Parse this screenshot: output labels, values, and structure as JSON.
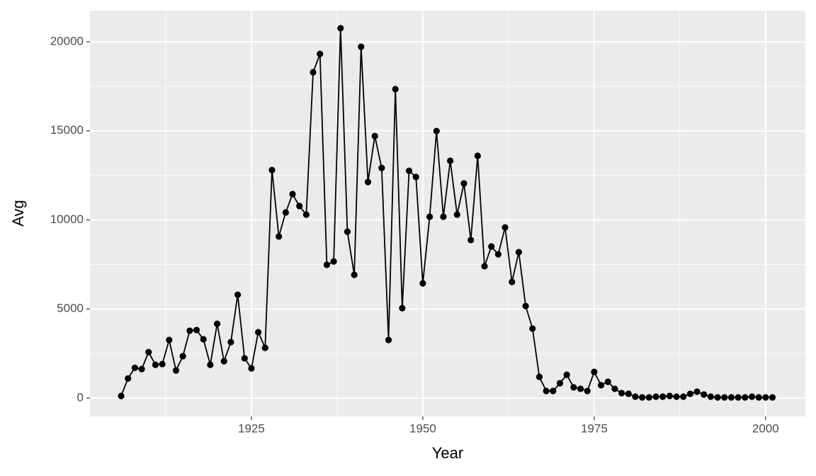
{
  "chart_data": {
    "type": "line",
    "x_label": "Year",
    "y_label": "Avg",
    "x": [
      1906,
      1907,
      1908,
      1909,
      1910,
      1911,
      1912,
      1913,
      1914,
      1915,
      1916,
      1917,
      1918,
      1919,
      1920,
      1921,
      1922,
      1923,
      1924,
      1925,
      1926,
      1927,
      1928,
      1929,
      1930,
      1931,
      1932,
      1933,
      1934,
      1935,
      1936,
      1937,
      1938,
      1939,
      1940,
      1941,
      1942,
      1943,
      1944,
      1945,
      1946,
      1947,
      1948,
      1949,
      1950,
      1951,
      1952,
      1953,
      1954,
      1955,
      1956,
      1957,
      1958,
      1959,
      1960,
      1961,
      1962,
      1963,
      1964,
      1965,
      1966,
      1967,
      1968,
      1969,
      1970,
      1971,
      1972,
      1973,
      1974,
      1975,
      1976,
      1977,
      1978,
      1979,
      1980,
      1981,
      1982,
      1983,
      1984,
      1985,
      1986,
      1987,
      1988,
      1989,
      1990,
      1991,
      1992,
      1993,
      1994,
      1995,
      1996,
      1997,
      1998,
      1999,
      2000,
      2001
    ],
    "series": [
      {
        "color": "#000000",
        "values": [
          120,
          1100,
          1700,
          1630,
          2580,
          1870,
          1910,
          3260,
          1550,
          2350,
          3780,
          3820,
          3300,
          1870,
          4170,
          2070,
          3140,
          5800,
          2230,
          1670,
          3700,
          2820,
          12800,
          9070,
          10420,
          11450,
          10780,
          10300,
          18290,
          19320,
          7480,
          7670,
          20760,
          9340,
          6920,
          19720,
          12130,
          14710,
          12920,
          3260,
          17340,
          5050,
          12760,
          12410,
          6440,
          10180,
          14990,
          10180,
          13320,
          10300,
          12050,
          8870,
          13600,
          7400,
          8510,
          8070,
          9580,
          6520,
          8190,
          5170,
          3900,
          1190,
          400,
          400,
          835,
          1310,
          600,
          520,
          400,
          1470,
          720,
          915,
          520,
          280,
          240,
          80,
          40,
          40,
          80,
          80,
          120,
          80,
          80,
          240,
          360,
          200,
          80,
          40,
          40,
          40,
          40,
          40,
          80,
          40,
          40,
          40
        ]
      }
    ],
    "xlim": [
      1901.45,
      2005.8
    ],
    "ylim": [
      -1034,
      21750
    ],
    "xticks": [
      1925,
      1950,
      1975,
      2000
    ],
    "yticks": [
      0,
      5000,
      10000,
      15000,
      20000
    ],
    "grid": true,
    "points": true
  }
}
